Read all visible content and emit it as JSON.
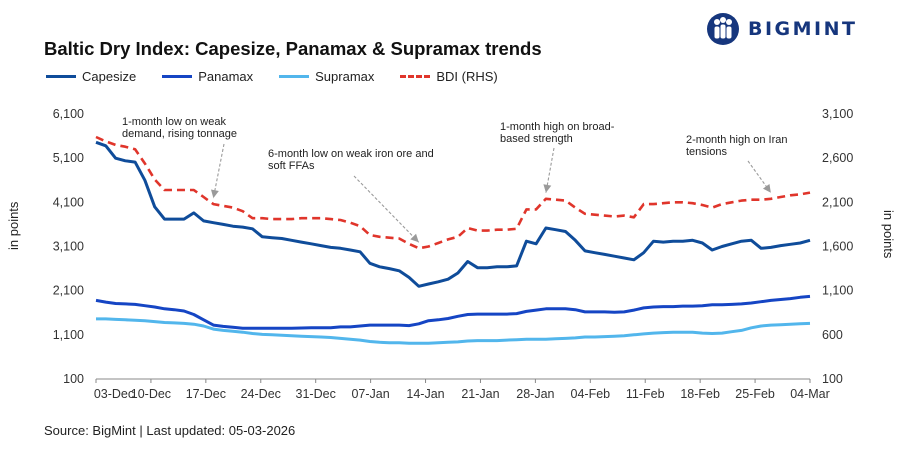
{
  "header": {
    "title": "Baltic Dry Index: Capesize, Panamax & Supramax trends",
    "logo_text": "BIGMINT"
  },
  "footer": {
    "source": "Source: BigMint | Last updated: 05-03-2026"
  },
  "colors": {
    "capesize": "#0f4c9a",
    "panamax": "#1545c4",
    "supramax": "#52b6ec",
    "bdi": "#e0352b",
    "logo": "#16367d"
  },
  "chart_data": {
    "type": "line",
    "x_labels": [
      "03-Dec",
      "10-Dec",
      "17-Dec",
      "24-Dec",
      "31-Dec",
      "07-Jan",
      "14-Jan",
      "21-Jan",
      "28-Jan",
      "04-Feb",
      "11-Feb",
      "18-Feb",
      "25-Feb",
      "04-Mar"
    ],
    "y_left": {
      "label": "in points",
      "min": 100,
      "max": 6100,
      "ticks": [
        "100",
        "1,100",
        "2,100",
        "3,100",
        "4,100",
        "5,100",
        "6,100"
      ]
    },
    "y_right": {
      "label": "in points",
      "min": 100,
      "max": 3100,
      "ticks": [
        "100",
        "600",
        "1,100",
        "1,600",
        "2,100",
        "2,600",
        "3,100"
      ]
    },
    "legend": {
      "position": "top-left"
    },
    "grid": false,
    "series": [
      {
        "name": "Capesize",
        "axis": "left",
        "style": "solid",
        "values": [
          5460,
          5380,
          5100,
          5040,
          5010,
          4600,
          4000,
          3720,
          3720,
          3720,
          3860,
          3680,
          3640,
          3600,
          3560,
          3540,
          3500,
          3320,
          3300,
          3280,
          3240,
          3200,
          3160,
          3120,
          3080,
          3060,
          3020,
          2980,
          2720,
          2640,
          2600,
          2550,
          2400,
          2200,
          2250,
          2300,
          2360,
          2500,
          2760,
          2620,
          2620,
          2640,
          2640,
          2660,
          3220,
          3160,
          3520,
          3480,
          3440,
          3240,
          3000,
          2960,
          2920,
          2880,
          2840,
          2800,
          2960,
          3220,
          3200,
          3220,
          3220,
          3240,
          3180,
          3020,
          3100,
          3160,
          3220,
          3240,
          3060,
          3080,
          3120,
          3150,
          3180,
          3240
        ]
      },
      {
        "name": "Panamax",
        "axis": "left",
        "style": "solid",
        "values": [
          1880,
          1840,
          1810,
          1800,
          1790,
          1760,
          1730,
          1690,
          1670,
          1640,
          1560,
          1440,
          1320,
          1290,
          1270,
          1250,
          1250,
          1250,
          1250,
          1250,
          1250,
          1255,
          1260,
          1260,
          1260,
          1280,
          1280,
          1300,
          1320,
          1320,
          1320,
          1320,
          1310,
          1350,
          1420,
          1440,
          1470,
          1520,
          1560,
          1570,
          1570,
          1570,
          1570,
          1580,
          1630,
          1660,
          1690,
          1690,
          1690,
          1670,
          1620,
          1620,
          1620,
          1610,
          1620,
          1660,
          1710,
          1730,
          1740,
          1740,
          1750,
          1750,
          1760,
          1780,
          1780,
          1790,
          1800,
          1820,
          1850,
          1880,
          1900,
          1920,
          1950,
          1970
        ]
      },
      {
        "name": "Supramax",
        "axis": "left",
        "style": "solid",
        "values": [
          1460,
          1460,
          1450,
          1440,
          1430,
          1420,
          1400,
          1380,
          1370,
          1360,
          1340,
          1300,
          1230,
          1200,
          1180,
          1160,
          1130,
          1110,
          1100,
          1090,
          1080,
          1070,
          1060,
          1050,
          1040,
          1020,
          1000,
          980,
          950,
          930,
          920,
          920,
          910,
          910,
          910,
          920,
          930,
          940,
          960,
          970,
          970,
          970,
          980,
          990,
          1000,
          1000,
          1000,
          1010,
          1020,
          1030,
          1050,
          1050,
          1060,
          1070,
          1080,
          1100,
          1120,
          1140,
          1150,
          1160,
          1160,
          1160,
          1140,
          1130,
          1140,
          1170,
          1200,
          1260,
          1300,
          1320,
          1330,
          1340,
          1350,
          1360
        ]
      },
      {
        "name": "BDI (RHS)",
        "axis": "right",
        "style": "dashed",
        "values": [
          2840,
          2790,
          2750,
          2730,
          2700,
          2540,
          2360,
          2240,
          2240,
          2240,
          2240,
          2160,
          2080,
          2060,
          2040,
          2000,
          1920,
          1920,
          1910,
          1910,
          1910,
          1920,
          1920,
          1920,
          1910,
          1900,
          1870,
          1830,
          1730,
          1710,
          1700,
          1690,
          1630,
          1580,
          1600,
          1640,
          1680,
          1710,
          1810,
          1780,
          1780,
          1790,
          1790,
          1800,
          2020,
          2020,
          2140,
          2130,
          2120,
          2040,
          1970,
          1960,
          1950,
          1940,
          1950,
          1930,
          2080,
          2080,
          2090,
          2100,
          2100,
          2090,
          2070,
          2040,
          2080,
          2100,
          2120,
          2130,
          2130,
          2140,
          2160,
          2180,
          2190,
          2210
        ]
      }
    ],
    "annotations": [
      {
        "lines": [
          "1-month low on weak",
          "demand, rising tonnage"
        ],
        "target_index": 12,
        "target_value": 2080,
        "target_axis": "right"
      },
      {
        "lines": [
          "6-month low on weak iron ore and",
          "soft FFAs"
        ],
        "target_index": 33,
        "target_value": 1580,
        "target_axis": "right"
      },
      {
        "lines": [
          "1-month high on broad-",
          "based strength"
        ],
        "target_index": 46,
        "target_value": 2140,
        "target_axis": "right"
      },
      {
        "lines": [
          "2-month high on Iran",
          "tensions"
        ],
        "target_index": 69,
        "target_value": 2140,
        "target_axis": "right"
      }
    ]
  }
}
